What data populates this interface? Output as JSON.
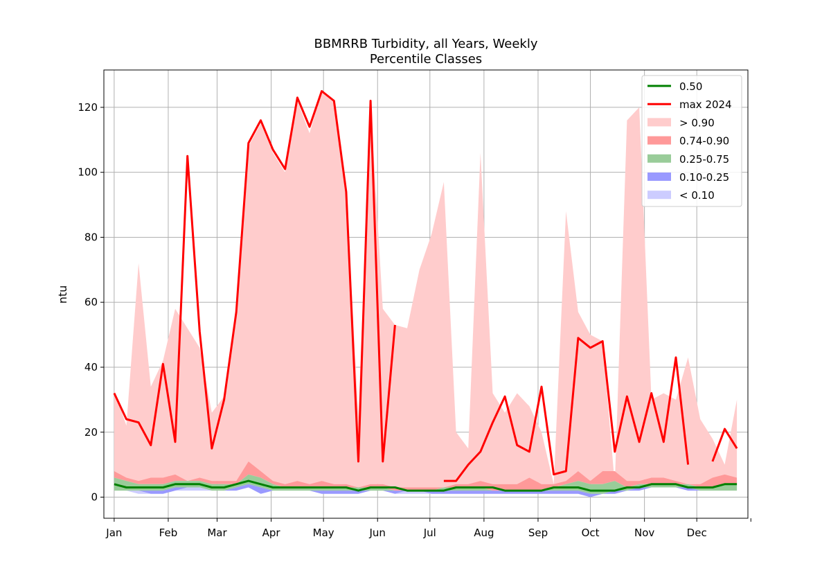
{
  "chart_data": {
    "type": "area",
    "title_line1": "BBMRRB Turbidity, all Years, Weekly",
    "title_line2": "Percentile Classes",
    "ylabel": "ntu",
    "xlabel": "",
    "ylim": [
      -6.5,
      131.5
    ],
    "xlim": [
      -5.9,
      363.3
    ],
    "yticks": [
      0,
      20,
      40,
      60,
      80,
      100,
      120
    ],
    "xticks": [
      {
        "day": 0,
        "label": "Jan"
      },
      {
        "day": 31,
        "label": "Feb"
      },
      {
        "day": 59,
        "label": "Mar"
      },
      {
        "day": 90,
        "label": "Apr"
      },
      {
        "day": 120,
        "label": "May"
      },
      {
        "day": 151,
        "label": "Jun"
      },
      {
        "day": 181,
        "label": "Jul"
      },
      {
        "day": 212,
        "label": "Aug"
      },
      {
        "day": 243,
        "label": "Sep"
      },
      {
        "day": 273,
        "label": "Oct"
      },
      {
        "day": 304,
        "label": "Nov"
      },
      {
        "day": 334,
        "label": "Dec"
      },
      {
        "day": 365,
        "label": ""
      }
    ],
    "grid": true,
    "legend_position": "top-right",
    "colors": {
      "median": "#008000",
      "max": "#ff0000",
      "gt90": "#ffcccc",
      "p74_90": "#ff9999",
      "p25_75": "#99cc99",
      "p10_25": "#9999ff",
      "lt10": "#ccccff"
    },
    "legend": [
      {
        "key": "median",
        "label": "0.50",
        "kind": "line"
      },
      {
        "key": "max",
        "label": "max 2024",
        "kind": "line"
      },
      {
        "key": "gt90",
        "label": "> 0.90",
        "kind": "patch"
      },
      {
        "key": "p74_90",
        "label": "0.74-0.90",
        "kind": "patch"
      },
      {
        "key": "p25_75",
        "label": "0.25-0.75",
        "kind": "patch"
      },
      {
        "key": "p10_25",
        "label": "0.10-0.25",
        "kind": "patch"
      },
      {
        "key": "lt10",
        "label": "< 0.10",
        "kind": "patch"
      }
    ],
    "x_days": [
      0,
      7,
      14,
      21,
      28,
      35,
      42,
      49,
      56,
      63,
      70,
      77,
      84,
      91,
      98,
      105,
      112,
      119,
      126,
      133,
      140,
      147,
      154,
      161,
      168,
      175,
      182,
      189,
      196,
      203,
      210,
      217,
      224,
      231,
      238,
      245,
      252,
      259,
      266,
      273,
      280,
      287,
      294,
      301,
      308,
      315,
      322,
      329,
      336,
      343,
      350,
      357
    ],
    "band_max": [
      33,
      22,
      72,
      34,
      42,
      58,
      52,
      46,
      26,
      31,
      56,
      108,
      115,
      106,
      100,
      122,
      112,
      125,
      122,
      95,
      25,
      122,
      58,
      53,
      52,
      70,
      81,
      97,
      20,
      15,
      106,
      32,
      26,
      32,
      28,
      20,
      4,
      88,
      57,
      50,
      48,
      4,
      116,
      120,
      30,
      32,
      30,
      43,
      24,
      18,
      10,
      30
    ],
    "p90": [
      8,
      6,
      5,
      6,
      6,
      7,
      5,
      6,
      5,
      5,
      5,
      11,
      8,
      5,
      4,
      5,
      4,
      5,
      4,
      4,
      3,
      4,
      4,
      3,
      3,
      3,
      3,
      3,
      4,
      4,
      5,
      4,
      4,
      4,
      6,
      4,
      4,
      5,
      8,
      5,
      8,
      8,
      5,
      5,
      6,
      6,
      5,
      4,
      4,
      6,
      7,
      6
    ],
    "p75": [
      6,
      5,
      4,
      4,
      4,
      5,
      5,
      5,
      4,
      4,
      4,
      7,
      6,
      4,
      3,
      3,
      3,
      3,
      3,
      3,
      3,
      3,
      3,
      2,
      2,
      2,
      2,
      3,
      3,
      3,
      3,
      2,
      2,
      2,
      2,
      2,
      3,
      4,
      5,
      4,
      4,
      5,
      3,
      4,
      4,
      4,
      4,
      4,
      3,
      3,
      4,
      4
    ],
    "p25": [
      2,
      2,
      2,
      2,
      2,
      3,
      3,
      3,
      2,
      2,
      3,
      4,
      3,
      2,
      2,
      2,
      2,
      2,
      2,
      2,
      2,
      2,
      2,
      2,
      2,
      2,
      2,
      2,
      2,
      2,
      2,
      2,
      2,
      2,
      2,
      2,
      2,
      2,
      2,
      1,
      1,
      2,
      2,
      3,
      3,
      3,
      3,
      3,
      2,
      2,
      2,
      2
    ],
    "p10": [
      2,
      2,
      2,
      1,
      1,
      2,
      3,
      3,
      2,
      2,
      2,
      3,
      1,
      2,
      2,
      2,
      2,
      1,
      1,
      1,
      1,
      2,
      2,
      1,
      2,
      2,
      1,
      1,
      1,
      1,
      1,
      1,
      1,
      1,
      1,
      1,
      1,
      1,
      1,
      0,
      1,
      1,
      2,
      2,
      3,
      3,
      3,
      2,
      2,
      2,
      2,
      2
    ],
    "band_min": [
      2,
      2,
      1,
      1,
      1,
      2,
      2,
      2,
      2,
      2,
      2,
      3,
      1,
      2,
      2,
      2,
      2,
      1,
      1,
      1,
      1,
      2,
      2,
      1,
      1,
      1,
      1,
      1,
      1,
      1,
      1,
      1,
      1,
      1,
      1,
      1,
      1,
      1,
      1,
      0,
      1,
      1,
      2,
      2,
      3,
      3,
      3,
      2,
      2,
      2,
      2,
      2
    ],
    "median": [
      4,
      3,
      3,
      3,
      3,
      4,
      4,
      4,
      3,
      3,
      4,
      5,
      4,
      3,
      3,
      3,
      3,
      3,
      3,
      3,
      2,
      3,
      3,
      3,
      2,
      2,
      2,
      2,
      3,
      3,
      3,
      3,
      2,
      2,
      2,
      2,
      3,
      3,
      3,
      2,
      2,
      2,
      3,
      3,
      4,
      4,
      4,
      3,
      3,
      3,
      4,
      4
    ],
    "max_2024": [
      32,
      24,
      23,
      16,
      41,
      17,
      105,
      51,
      15,
      30,
      57,
      109,
      116,
      107,
      101,
      123,
      114,
      125,
      122,
      94,
      11,
      122,
      11,
      53,
      null,
      null,
      null,
      5,
      5,
      10,
      14,
      23,
      31,
      16,
      14,
      34,
      7,
      8,
      49,
      46,
      48,
      14,
      31,
      17,
      32,
      17,
      43,
      10,
      null,
      11,
      21,
      15
    ]
  }
}
